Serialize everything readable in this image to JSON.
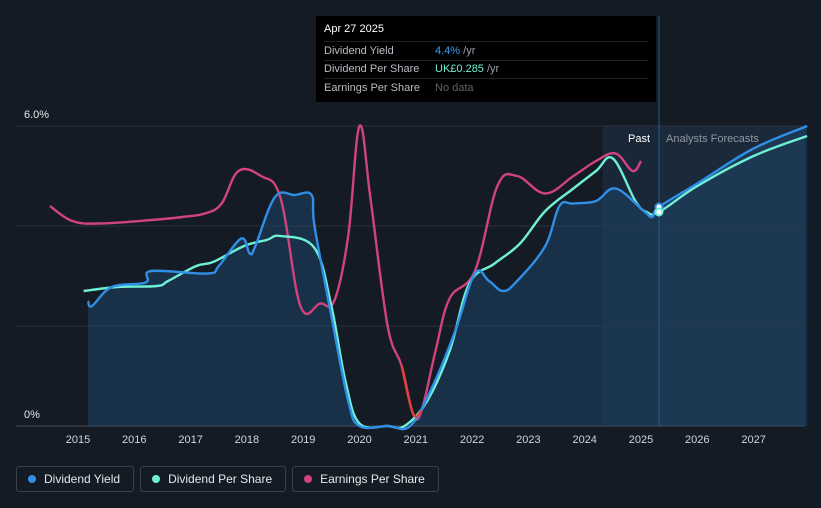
{
  "tooltip": {
    "date": "Apr 27 2025",
    "rows": [
      {
        "label": "Dividend Yield",
        "value": "4.4%",
        "unit": " /yr",
        "color": "#3b9cf0"
      },
      {
        "label": "Dividend Per Share",
        "value": "UK£0.285",
        "unit": " /yr",
        "color": "#6ff0d6"
      },
      {
        "label": "Earnings Per Share",
        "value": "No data",
        "unit": "",
        "color": "#5d636c"
      }
    ]
  },
  "legend": [
    {
      "label": "Dividend Yield",
      "color": "#2f8fe6"
    },
    {
      "label": "Dividend Per Share",
      "color": "#6ff0d6"
    },
    {
      "label": "Earnings Per Share",
      "color": "#d0437e"
    }
  ],
  "chart_data": {
    "type": "line",
    "y_tick_labels": [
      "6.0%",
      "0%"
    ],
    "ylim": [
      0,
      6
    ],
    "xlim": [
      2014.5,
      2027.95
    ],
    "x_ticks": [
      2015,
      2016,
      2017,
      2018,
      2019,
      2020,
      2021,
      2022,
      2023,
      2024,
      2025,
      2026,
      2027
    ],
    "region_labels": {
      "past": "Past",
      "forecast": "Analysts Forecasts"
    },
    "forecast_start": 2025.32,
    "highlight_start": 2024.32,
    "grid": true,
    "series": [
      {
        "name": "Dividend Yield",
        "color": "#2f8fe6",
        "points": [
          [
            2015.18,
            2.5
          ],
          [
            2015.25,
            2.4
          ],
          [
            2015.6,
            2.78
          ],
          [
            2016.2,
            2.87
          ],
          [
            2016.3,
            3.1
          ],
          [
            2017.3,
            3.05
          ],
          [
            2017.5,
            3.2
          ],
          [
            2017.9,
            3.75
          ],
          [
            2018.05,
            3.45
          ],
          [
            2018.15,
            3.6
          ],
          [
            2018.5,
            4.58
          ],
          [
            2018.85,
            4.62
          ],
          [
            2019.15,
            4.62
          ],
          [
            2019.2,
            4.0
          ],
          [
            2019.5,
            2.2
          ],
          [
            2019.8,
            0.5
          ],
          [
            2020.0,
            0.0
          ],
          [
            2020.5,
            0.0
          ],
          [
            2020.9,
            0.0
          ],
          [
            2021.3,
            0.8
          ],
          [
            2021.7,
            1.9
          ],
          [
            2022.05,
            3.05
          ],
          [
            2022.3,
            2.9
          ],
          [
            2022.55,
            2.7
          ],
          [
            2022.8,
            2.9
          ],
          [
            2023.3,
            3.6
          ],
          [
            2023.55,
            4.4
          ],
          [
            2023.8,
            4.45
          ],
          [
            2024.2,
            4.5
          ],
          [
            2024.55,
            4.75
          ],
          [
            2025.05,
            4.3
          ],
          [
            2025.2,
            4.18
          ],
          [
            2025.32,
            4.38
          ],
          [
            2026.0,
            4.85
          ],
          [
            2027.0,
            5.55
          ],
          [
            2027.95,
            6.0
          ]
        ]
      },
      {
        "name": "Dividend Per Share",
        "color": "#6ff0d6",
        "points": [
          [
            2015.1,
            2.7
          ],
          [
            2015.7,
            2.78
          ],
          [
            2016.4,
            2.8
          ],
          [
            2016.6,
            2.9
          ],
          [
            2017.1,
            3.2
          ],
          [
            2017.4,
            3.28
          ],
          [
            2017.95,
            3.6
          ],
          [
            2018.35,
            3.72
          ],
          [
            2018.6,
            3.8
          ],
          [
            2019.2,
            3.56
          ],
          [
            2019.5,
            2.4
          ],
          [
            2019.75,
            0.9
          ],
          [
            2020.0,
            0.05
          ],
          [
            2020.5,
            0.0
          ],
          [
            2020.8,
            0.0
          ],
          [
            2021.2,
            0.5
          ],
          [
            2021.6,
            1.5
          ],
          [
            2021.95,
            2.85
          ],
          [
            2022.4,
            3.25
          ],
          [
            2022.85,
            3.65
          ],
          [
            2023.3,
            4.3
          ],
          [
            2023.8,
            4.75
          ],
          [
            2024.2,
            5.1
          ],
          [
            2024.5,
            5.35
          ],
          [
            2024.9,
            4.5
          ],
          [
            2025.1,
            4.28
          ],
          [
            2025.32,
            4.28
          ],
          [
            2026.0,
            4.8
          ],
          [
            2027.0,
            5.4
          ],
          [
            2027.95,
            5.8
          ]
        ]
      },
      {
        "name": "Earnings Per Share",
        "color": "#d0437e",
        "points": [
          [
            2014.5,
            4.4
          ],
          [
            2014.9,
            4.1
          ],
          [
            2015.4,
            4.05
          ],
          [
            2016.3,
            4.12
          ],
          [
            2016.85,
            4.18
          ],
          [
            2017.25,
            4.25
          ],
          [
            2017.55,
            4.45
          ],
          [
            2017.85,
            5.1
          ],
          [
            2018.25,
            5.0
          ],
          [
            2018.6,
            4.55
          ],
          [
            2018.95,
            2.4
          ],
          [
            2019.3,
            2.45
          ],
          [
            2019.55,
            2.5
          ],
          [
            2019.8,
            3.8
          ],
          [
            2020.0,
            6.0
          ],
          [
            2020.2,
            4.5
          ],
          [
            2020.5,
            2.0
          ],
          [
            2020.75,
            1.2
          ],
          [
            2020.95,
            0.25
          ],
          [
            2021.1,
            0.3
          ],
          [
            2021.35,
            1.5
          ],
          [
            2021.6,
            2.55
          ],
          [
            2022.05,
            3.1
          ],
          [
            2022.45,
            4.8
          ],
          [
            2022.8,
            5.0
          ],
          [
            2023.3,
            4.65
          ],
          [
            2023.8,
            5.0
          ],
          [
            2024.2,
            5.3
          ],
          [
            2024.55,
            5.45
          ],
          [
            2024.85,
            5.1
          ],
          [
            2025.0,
            5.3
          ]
        ]
      }
    ],
    "markers": [
      {
        "series": "Dividend Yield",
        "x": 2025.32,
        "y": 4.38
      },
      {
        "series": "Dividend Per Share",
        "x": 2025.32,
        "y": 4.28
      }
    ]
  }
}
